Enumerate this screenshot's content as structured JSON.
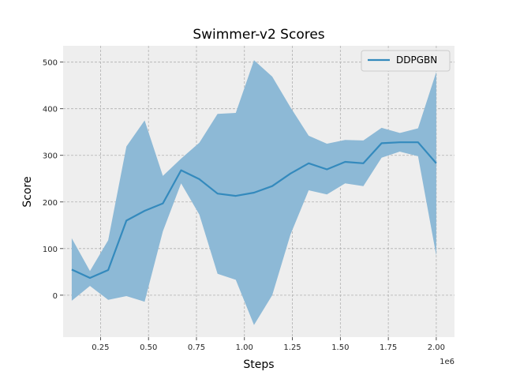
{
  "chart_data": {
    "type": "line",
    "title": "Swimmer-v2 Scores",
    "xlabel": "Steps",
    "ylabel": "Score",
    "x_offset_label": "1e6",
    "xlim": [
      0.055,
      2.095
    ],
    "ylim": [
      -90,
      535
    ],
    "xticks": [
      0.25,
      0.5,
      0.75,
      1.0,
      1.25,
      1.5,
      1.75,
      2.0
    ],
    "xtick_labels": [
      "0.25",
      "0.50",
      "0.75",
      "1.00",
      "1.25",
      "1.50",
      "1.75",
      "2.00"
    ],
    "yticks": [
      0,
      100,
      200,
      300,
      400,
      500
    ],
    "ytick_labels": [
      "0",
      "100",
      "200",
      "300",
      "400",
      "500"
    ],
    "grid": true,
    "legend_position": "top-right",
    "colors": {
      "line": "#348abd",
      "band": "#8db9d6",
      "background": "#eeeeee",
      "grid": "#b0b0b0"
    },
    "series": [
      {
        "name": "DDPGBN",
        "x": [
          0.1,
          0.195,
          0.29,
          0.385,
          0.48,
          0.575,
          0.67,
          0.765,
          0.86,
          0.955,
          1.05,
          1.145,
          1.24,
          1.335,
          1.43,
          1.525,
          1.62,
          1.715,
          1.81,
          1.905,
          2.0
        ],
        "y": [
          55,
          37,
          54,
          160,
          181,
          197,
          268,
          249,
          218,
          213,
          220,
          234,
          261,
          283,
          270,
          286,
          283,
          326,
          328,
          328,
          283
        ],
        "upper": [
          122,
          52,
          118,
          319,
          375,
          256,
          293,
          327,
          389,
          391,
          504,
          469,
          403,
          342,
          325,
          333,
          332,
          359,
          348,
          358,
          479
        ],
        "lower": [
          -12,
          20,
          -10,
          -2,
          -14,
          137,
          240,
          173,
          46,
          33,
          -64,
          0,
          130,
          225,
          216,
          240,
          234,
          295,
          308,
          298,
          85
        ]
      }
    ]
  }
}
